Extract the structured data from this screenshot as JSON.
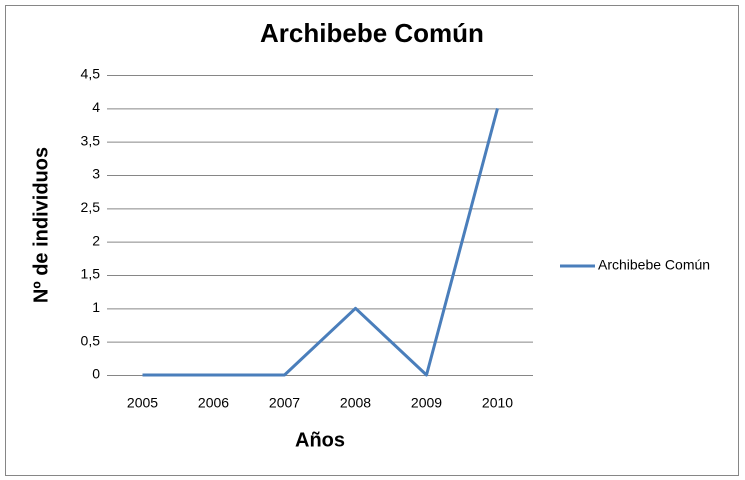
{
  "chart_data": {
    "type": "line",
    "title": "Archibebe Común",
    "x_label": "Años",
    "y_label": "Nº de individuos",
    "categories": [
      "2005",
      "2006",
      "2007",
      "2008",
      "2009",
      "2010"
    ],
    "series": [
      {
        "name": "Archibebe Común",
        "color": "#4a7ebb",
        "values": [
          0,
          0,
          0,
          1,
          0,
          4
        ]
      }
    ],
    "ylim": [
      0,
      4.5
    ],
    "yticks": [
      0,
      {
        "value": 0.5,
        "label": "0,5"
      },
      1,
      {
        "value": 1.5,
        "label": "1,5"
      },
      2,
      {
        "value": 2.5,
        "label": "2,5"
      },
      3,
      {
        "value": 3.5,
        "label": "3,5"
      },
      4,
      {
        "value": 4.5,
        "label": "4,5"
      }
    ],
    "grid": true,
    "legend": "right"
  }
}
